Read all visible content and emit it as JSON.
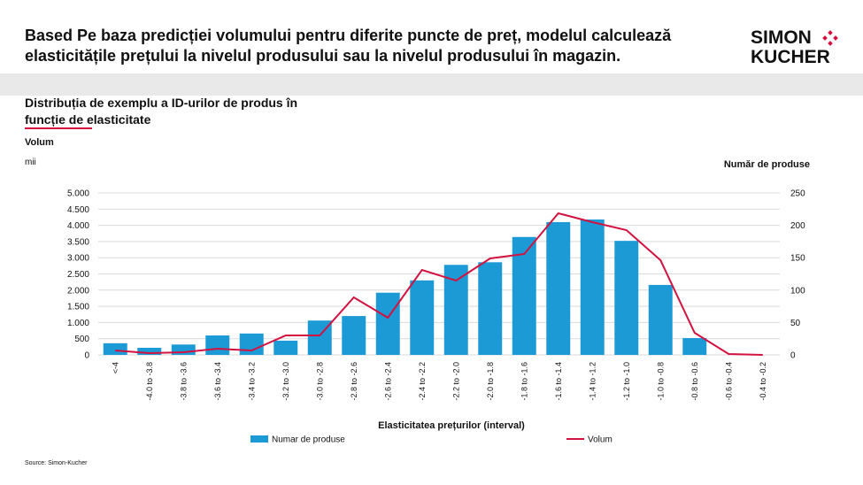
{
  "header": {
    "title_lines": [
      "Based Pe baza predicției volumului pentru diferite puncte de preț, modelul calculează",
      "elasticitățile prețului la nivelul produsului sau la nivelul produsului în magazin."
    ],
    "logo": [
      "SIMON",
      "KUCHER"
    ]
  },
  "subtitle_lines": [
    "Distribuția de exemplu a ID-urilor de produs în",
    "funcție de elasticitate"
  ],
  "chart_data": {
    "type": "combo",
    "y_label": "Volum",
    "y_unit": "mii",
    "y2_label": "Număr de produse",
    "x_label": "Elasticitatea prețurilor (interval)",
    "source": "Source: Simon-Kucher",
    "categories": [
      "<-4",
      "-4.0 to -3.8",
      "-3.8 to -3.6",
      "-3.6 to -3.4",
      "-3.4 to -3.2",
      "-3.2 to -3.0",
      "-3.0 to -2.8",
      "-2.8 to -2.6",
      "-2.6 to -2.4",
      "-2.4 to -2.2",
      "-2.2 to -2.0",
      "-2.0 to -1.8",
      "-1.8 to -1.6",
      "-1.6 to -1.4",
      "-1.4 to -1.2",
      "-1.2 to -1.0",
      "-1.0 to -0.8",
      "-0.8 to -0.6",
      "-0.6 to -0.4",
      "-0.4 to -0.2"
    ],
    "series": [
      {
        "name": "Numar de produse",
        "type": "bar",
        "axis": "y2",
        "color": "#1b9ad6",
        "values": [
          18,
          11,
          16,
          30,
          33,
          22,
          53,
          60,
          96,
          115,
          139,
          143,
          182,
          205,
          209,
          176,
          108,
          26,
          0,
          0
        ]
      },
      {
        "name": "Volum",
        "type": "line",
        "color": "#d3123f",
        "values": [
          137,
          55,
          82,
          190,
          137,
          600,
          600,
          1776,
          1148,
          2623,
          2295,
          2978,
          3115,
          4372,
          4098,
          3852,
          2923,
          683,
          27,
          0
        ]
      }
    ],
    "ylim": [
      0,
      5000
    ],
    "yticks": [
      0,
      500,
      {
        "value": 1000,
        "label": "1.000"
      },
      {
        "value": 1500,
        "label": "1.500"
      },
      {
        "value": 2000,
        "label": "2.000"
      },
      {
        "value": 2500,
        "label": "2.500"
      },
      {
        "value": 3000,
        "label": "3.000"
      },
      {
        "value": 3500,
        "label": "3.500"
      },
      {
        "value": 4000,
        "label": "4.000"
      },
      {
        "value": 4500,
        "label": "4.500"
      },
      {
        "value": 5000,
        "label": "5.000"
      }
    ],
    "y2lim": [
      0,
      250
    ],
    "y2ticks": [
      0,
      50,
      100,
      150,
      200,
      250
    ],
    "grid": true,
    "legend": "bottom"
  }
}
